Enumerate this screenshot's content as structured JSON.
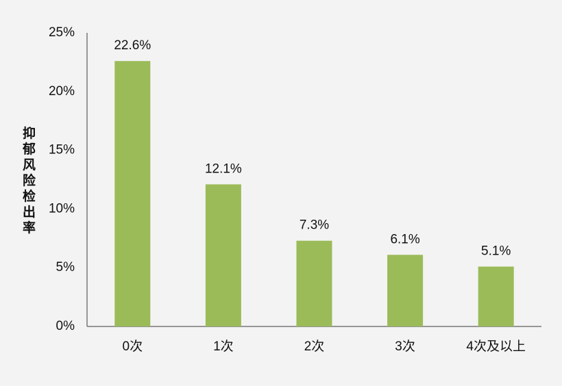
{
  "chart_data": {
    "type": "bar",
    "y_label": "抑郁风险检出率",
    "categories": [
      "0次",
      "1次",
      "2次",
      "3次",
      "4次及以上"
    ],
    "values": [
      22.6,
      12.1,
      7.3,
      6.1,
      5.1
    ],
    "value_labels": [
      "22.6%",
      "12.1%",
      "7.3%",
      "6.1%",
      "5.1%"
    ],
    "color": "#9bbb59",
    "ylim": [
      0,
      25
    ],
    "yticks": [
      {
        "value": 0,
        "label": "0%"
      },
      {
        "value": 5,
        "label": "5%"
      },
      {
        "value": 10,
        "label": "10%"
      },
      {
        "value": 15,
        "label": "15%"
      },
      {
        "value": 20,
        "label": "20%"
      },
      {
        "value": 25,
        "label": "25%"
      }
    ],
    "grid": false
  }
}
